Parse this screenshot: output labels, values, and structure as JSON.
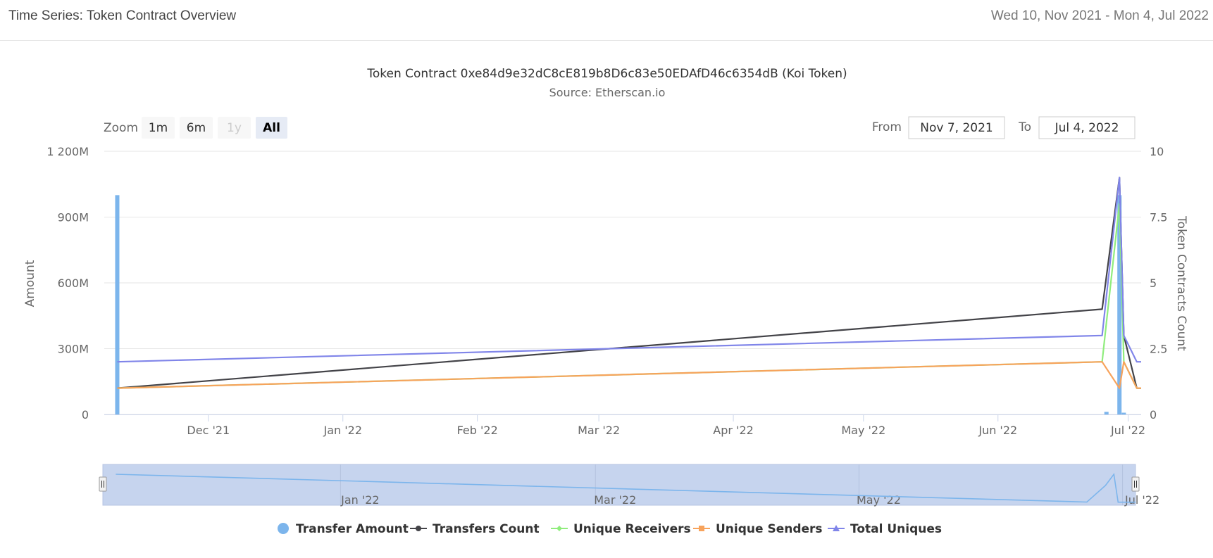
{
  "header": {
    "title": "Time Series: Token Contract Overview",
    "date_range": "Wed 10, Nov 2021 - Mon 4, Jul 2022"
  },
  "range_selector": {
    "zoom_label": "Zoom",
    "buttons": [
      {
        "label": "1m",
        "state": "normal"
      },
      {
        "label": "6m",
        "state": "normal"
      },
      {
        "label": "1y",
        "state": "disabled"
      },
      {
        "label": "All",
        "state": "selected"
      }
    ],
    "from_label": "From",
    "from_value": "Nov 7, 2021",
    "to_label": "To",
    "to_value": "Jul 4, 2022"
  },
  "chart_data": {
    "type": "line",
    "title": "Token Contract 0xe84d9e32dC8cE819b8D6c83e50EDAfD46c6354dB (Koi Token)",
    "subtitle": "Source: Etherscan.io",
    "x_range": [
      "2021-11-07",
      "2022-07-04"
    ],
    "x_ticks": [
      {
        "date": "2021-12-01",
        "label": "Dec '21"
      },
      {
        "date": "2022-01-01",
        "label": "Jan '22"
      },
      {
        "date": "2022-02-01",
        "label": "Feb '22"
      },
      {
        "date": "2022-03-01",
        "label": "Mar '22"
      },
      {
        "date": "2022-04-01",
        "label": "Apr '22"
      },
      {
        "date": "2022-05-01",
        "label": "May '22"
      },
      {
        "date": "2022-06-01",
        "label": "Jun '22"
      },
      {
        "date": "2022-07-01",
        "label": "Jul '22"
      }
    ],
    "y_left": {
      "label": "Amount",
      "min": 0,
      "max": 1200000000,
      "ticks": [
        0,
        300000000,
        600000000,
        900000000,
        1200000000
      ],
      "tick_labels": [
        "0",
        "300M",
        "600M",
        "900M",
        "1 200M"
      ]
    },
    "y_right": {
      "label": "Token Contracts Count",
      "min": 0,
      "max": 10,
      "ticks": [
        0,
        2.5,
        5,
        7.5,
        10
      ],
      "tick_labels": [
        "0",
        "2.5",
        "5",
        "7.5",
        "10"
      ]
    },
    "series": [
      {
        "name": "Transfer Amount",
        "type": "column",
        "axis": "left",
        "color": "#7cb5ec",
        "points": [
          [
            "2021-11-10",
            1000000000
          ],
          [
            "2022-06-26",
            12000000
          ],
          [
            "2022-06-29",
            1000000000
          ],
          [
            "2022-06-30",
            8000000
          ]
        ]
      },
      {
        "name": "Transfers Count",
        "type": "line",
        "axis": "right",
        "color": "#434348",
        "points": [
          [
            "2021-11-10",
            1
          ],
          [
            "2022-06-25",
            4
          ],
          [
            "2022-06-29",
            9
          ],
          [
            "2022-06-30",
            3
          ],
          [
            "2022-07-03",
            1
          ],
          [
            "2022-07-04",
            1
          ]
        ]
      },
      {
        "name": "Unique Receivers",
        "type": "line",
        "axis": "right",
        "color": "#90ed7d",
        "points": [
          [
            "2021-11-10",
            1
          ],
          [
            "2022-06-25",
            2
          ],
          [
            "2022-06-29",
            8
          ],
          [
            "2022-06-30",
            2
          ],
          [
            "2022-07-03",
            1
          ],
          [
            "2022-07-04",
            1
          ]
        ]
      },
      {
        "name": "Unique Senders",
        "type": "line",
        "axis": "right",
        "color": "#f7a35c",
        "points": [
          [
            "2021-11-10",
            1
          ],
          [
            "2022-06-25",
            2
          ],
          [
            "2022-06-29",
            1
          ],
          [
            "2022-06-30",
            2
          ],
          [
            "2022-07-03",
            1
          ],
          [
            "2022-07-04",
            1
          ]
        ]
      },
      {
        "name": "Total Uniques",
        "type": "line",
        "axis": "right",
        "color": "#8085e9",
        "points": [
          [
            "2021-11-10",
            2
          ],
          [
            "2022-06-25",
            3
          ],
          [
            "2022-06-29",
            9
          ],
          [
            "2022-06-30",
            3
          ],
          [
            "2022-07-03",
            2
          ],
          [
            "2022-07-04",
            2
          ]
        ]
      }
    ],
    "navigator": {
      "x_ticks": [
        {
          "date": "2022-01-01",
          "label": "Jan '22"
        },
        {
          "date": "2022-03-01",
          "label": "Mar '22"
        },
        {
          "date": "2022-05-01",
          "label": "May '22"
        },
        {
          "date": "2022-07-01",
          "label": "Jul '22"
        }
      ]
    },
    "legend": {
      "position": "bottom-center"
    },
    "grid": true
  }
}
